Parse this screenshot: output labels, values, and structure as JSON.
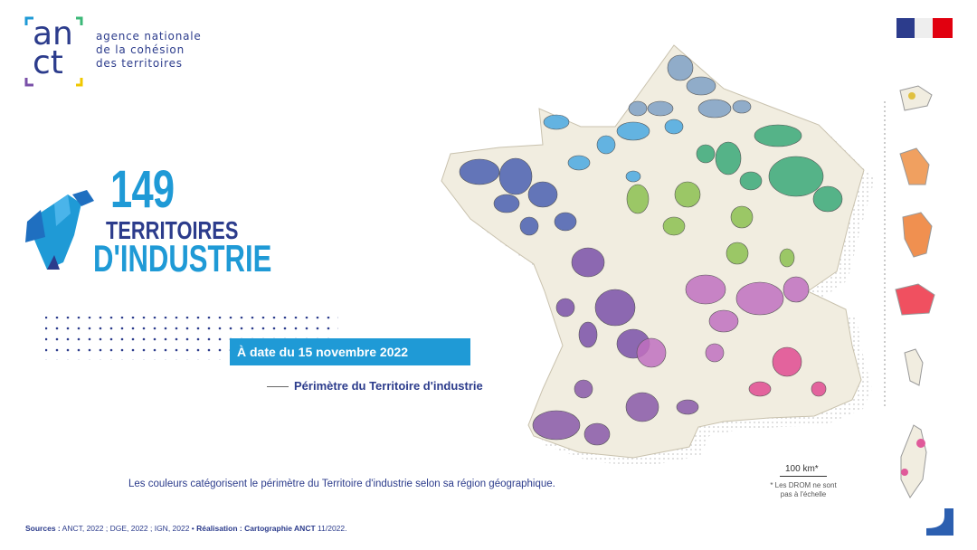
{
  "header": {
    "logo_top": "an",
    "logo_bottom": "ct",
    "agency_lines": [
      "agence nationale",
      "de la cohésion",
      "des territoires"
    ]
  },
  "badge": {
    "count": 149,
    "line1": "TERRITOIRES",
    "line2": "D'INDUSTRIE"
  },
  "date_label": "À date du 15 novembre 2022",
  "legend": {
    "label": "Périmètre du Territoire d'industrie"
  },
  "caption": "Les couleurs catégorisent le périmètre du Territoire d'industrie selon sa région géographique.",
  "scale": {
    "label": "100 km*",
    "note_lines": [
      "* Les DROM ne sont",
      "pas à l'échelle"
    ]
  },
  "sources": {
    "sources_label": "Sources :",
    "sources_text": "ANCT, 2022 ; DGE, 2022 ; IGN, 2022 •",
    "credit_label": "Réalisation :",
    "credit_name": "Cartographie ANCT",
    "credit_date": "11/2022."
  }
}
